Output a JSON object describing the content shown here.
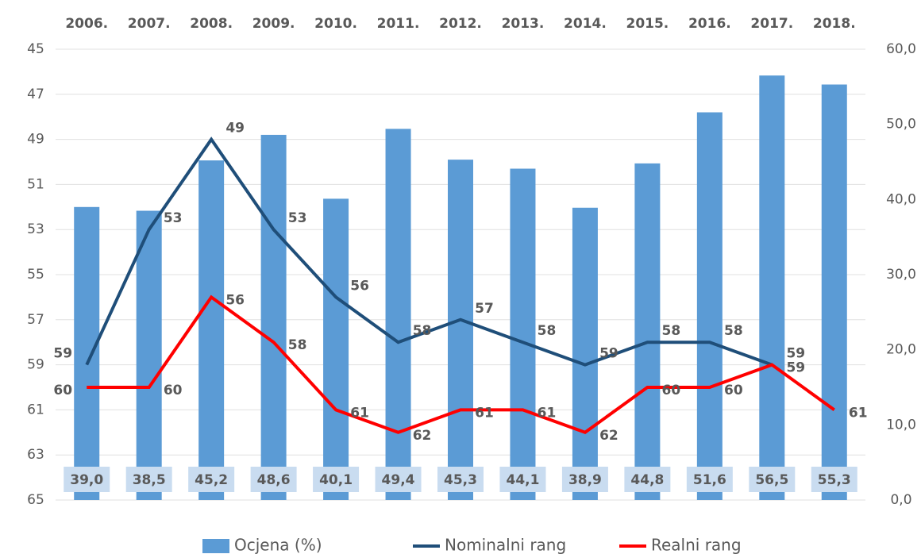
{
  "chart_data": {
    "type": "bar-line",
    "categories": [
      "2006.",
      "2007.",
      "2008.",
      "2009.",
      "2010.",
      "2011.",
      "2012.",
      "2013.",
      "2014.",
      "2015.",
      "2016.",
      "2017.",
      "2018."
    ],
    "series": [
      {
        "name": "Ocjena (%)",
        "type": "bar",
        "axis": "y2",
        "color": "#5b9bd5",
        "values": [
          39.0,
          38.5,
          45.2,
          48.6,
          40.1,
          49.4,
          45.3,
          44.1,
          38.9,
          44.8,
          51.6,
          56.5,
          55.3
        ],
        "value_labels": [
          "39,0",
          "38,5",
          "45,2",
          "48,6",
          "40,1",
          "49,4",
          "45,3",
          "44,1",
          "38,9",
          "44,8",
          "51,6",
          "56,5",
          "55,3"
        ]
      },
      {
        "name": "Nominalni rang",
        "type": "line",
        "axis": "y",
        "color": "#1f4e79",
        "values": [
          59,
          53,
          49,
          53,
          56,
          58,
          57,
          58,
          59,
          58,
          58,
          59,
          null
        ]
      },
      {
        "name": "Realni rang",
        "type": "line",
        "axis": "y",
        "color": "#ff0000",
        "values": [
          60,
          60,
          56,
          58,
          61,
          62,
          61,
          61,
          62,
          60,
          60,
          59,
          61
        ]
      }
    ],
    "ylim": [
      45,
      65
    ],
    "y_inverted": true,
    "yticks": [
      45,
      47,
      49,
      51,
      53,
      55,
      57,
      59,
      61,
      63,
      65
    ],
    "y2lim": [
      0,
      60
    ],
    "y2ticks": [
      {
        "value": 0,
        "label": "0,0"
      },
      {
        "value": 10,
        "label": "10,0"
      },
      {
        "value": 20,
        "label": "20,0"
      },
      {
        "value": 30,
        "label": "30,0"
      },
      {
        "value": 40,
        "label": "40,0"
      },
      {
        "value": 50,
        "label": "50,0"
      },
      {
        "value": 60,
        "label": "60,0"
      }
    ],
    "grid": true
  }
}
